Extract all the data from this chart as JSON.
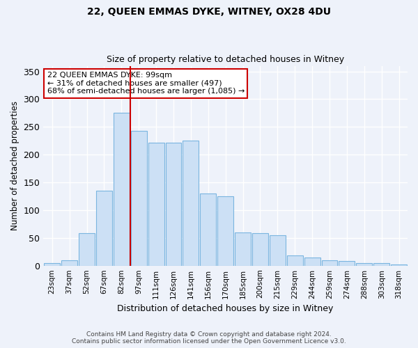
{
  "title": "22, QUEEN EMMAS DYKE, WITNEY, OX28 4DU",
  "subtitle": "Size of property relative to detached houses in Witney",
  "xlabel": "Distribution of detached houses by size in Witney",
  "ylabel": "Number of detached properties",
  "categories": [
    "23sqm",
    "37sqm",
    "52sqm",
    "67sqm",
    "82sqm",
    "97sqm",
    "111sqm",
    "126sqm",
    "141sqm",
    "156sqm",
    "170sqm",
    "185sqm",
    "200sqm",
    "215sqm",
    "229sqm",
    "244sqm",
    "259sqm",
    "274sqm",
    "288sqm",
    "303sqm",
    "318sqm"
  ],
  "values": [
    5,
    10,
    58,
    135,
    275,
    243,
    222,
    222,
    225,
    130,
    125,
    60,
    58,
    55,
    18,
    15,
    10,
    9,
    5,
    5,
    2
  ],
  "bar_color": "#cce0f5",
  "bar_edge_color": "#7ab5e0",
  "vline_x_index": 4.5,
  "vline_color": "#cc0000",
  "annotation_line1": "22 QUEEN EMMAS DYKE: 99sqm",
  "annotation_line2": "← 31% of detached houses are smaller (497)",
  "annotation_line3": "68% of semi-detached houses are larger (1,085) →",
  "annotation_box_color": "#cc0000",
  "ylim": [
    0,
    360
  ],
  "yticks": [
    0,
    50,
    100,
    150,
    200,
    250,
    300,
    350
  ],
  "background_color": "#eef2fa",
  "grid_color": "#ffffff",
  "footer_line1": "Contains HM Land Registry data © Crown copyright and database right 2024.",
  "footer_line2": "Contains public sector information licensed under the Open Government Licence v3.0."
}
